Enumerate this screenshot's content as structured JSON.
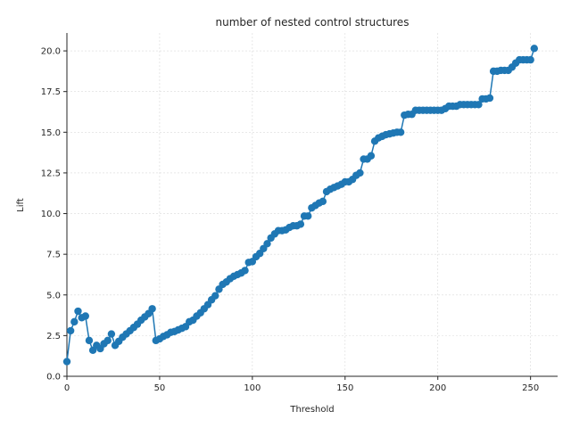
{
  "chart_data": {
    "type": "line",
    "title": "number of nested control structures",
    "xlabel": "Threshold",
    "ylabel": "Lift",
    "xlim": [
      0,
      264.6
    ],
    "ylim": [
      0,
      21.1
    ],
    "xticks": [
      0,
      50,
      100,
      150,
      200,
      250
    ],
    "yticks": [
      0.0,
      2.5,
      5.0,
      7.5,
      10.0,
      12.5,
      15.0,
      17.5,
      20.0
    ],
    "xtick_labels": [
      "0",
      "50",
      "100",
      "150",
      "200",
      "250"
    ],
    "ytick_labels": [
      "0.0",
      "2.5",
      "5.0",
      "7.5",
      "10.0",
      "12.5",
      "15.0",
      "17.5",
      "20.0"
    ],
    "grid": true,
    "color": "#1f77b4",
    "marker": "circle",
    "series": [
      {
        "x": [
          0,
          2,
          4,
          6,
          8,
          10,
          12,
          14,
          16,
          18,
          20,
          22,
          24,
          26,
          28,
          30,
          32,
          34,
          36,
          38,
          40,
          42,
          44,
          46,
          48,
          50,
          52,
          54,
          56,
          58,
          60,
          62,
          64,
          66,
          68,
          70,
          72,
          74,
          76,
          78,
          80,
          82,
          84,
          86,
          88,
          90,
          92,
          94,
          96,
          98,
          100,
          102,
          104,
          106,
          108,
          110,
          112,
          114,
          116,
          118,
          120,
          122,
          124,
          126,
          128,
          130,
          132,
          134,
          136,
          138,
          140,
          142,
          144,
          146,
          148,
          150,
          152,
          154,
          156,
          158,
          160,
          162,
          164,
          166,
          168,
          170,
          172,
          174,
          176,
          178,
          180,
          182,
          184,
          186,
          188,
          190,
          192,
          194,
          196,
          198,
          200,
          202,
          204,
          206,
          208,
          210,
          212,
          214,
          216,
          218,
          220,
          222,
          224,
          226,
          228,
          230,
          232,
          234,
          236,
          238,
          240,
          242,
          244,
          246,
          248,
          250,
          252
        ],
        "y": [
          0.9,
          2.8,
          3.35,
          4.0,
          3.6,
          3.7,
          2.2,
          1.6,
          1.9,
          1.7,
          2.0,
          2.2,
          2.6,
          1.9,
          2.15,
          2.4,
          2.6,
          2.8,
          3.0,
          3.2,
          3.45,
          3.65,
          3.85,
          4.15,
          2.2,
          2.3,
          2.45,
          2.55,
          2.7,
          2.75,
          2.85,
          2.95,
          3.05,
          3.35,
          3.45,
          3.7,
          3.9,
          4.15,
          4.4,
          4.7,
          4.95,
          5.35,
          5.65,
          5.8,
          6.0,
          6.15,
          6.25,
          6.35,
          6.5,
          7.0,
          7.05,
          7.35,
          7.55,
          7.85,
          8.15,
          8.5,
          8.75,
          8.95,
          8.95,
          9.0,
          9.15,
          9.25,
          9.25,
          9.35,
          9.85,
          9.85,
          10.35,
          10.5,
          10.65,
          10.75,
          11.35,
          11.5,
          11.6,
          11.7,
          11.8,
          11.95,
          11.95,
          12.1,
          12.35,
          12.5,
          13.35,
          13.35,
          13.55,
          14.45,
          14.65,
          14.75,
          14.85,
          14.9,
          14.95,
          15.0,
          15.0,
          16.05,
          16.1,
          16.1,
          16.35,
          16.35,
          16.35,
          16.35,
          16.35,
          16.35,
          16.35,
          16.35,
          16.45,
          16.6,
          16.6,
          16.6,
          16.7,
          16.7,
          16.7,
          16.7,
          16.7,
          16.7,
          17.05,
          17.05,
          17.1,
          18.75,
          18.75,
          18.8,
          18.8,
          18.8,
          19.0,
          19.25,
          19.45,
          19.45,
          19.45,
          19.45,
          20.15
        ]
      }
    ]
  }
}
